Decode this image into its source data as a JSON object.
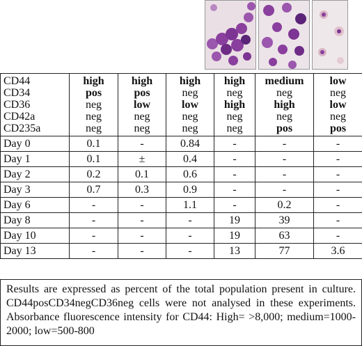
{
  "images": [
    {
      "name": "micrograph-1",
      "depicts": "cluster of purple-stained cells"
    },
    {
      "name": "micrograph-2",
      "depicts": "scattered purple-stained cells"
    },
    {
      "name": "micrograph-3",
      "depicts": "few pale cells"
    }
  ],
  "markers": [
    "CD44",
    "CD34",
    "CD36",
    "CD42a",
    "CD235a"
  ],
  "columns": [
    {
      "values": [
        {
          "t": "high",
          "b": true
        },
        {
          "t": "pos",
          "b": true
        },
        {
          "t": "neg",
          "b": false
        },
        {
          "t": "neg",
          "b": false
        },
        {
          "t": "neg",
          "b": false
        }
      ]
    },
    {
      "values": [
        {
          "t": "high",
          "b": true
        },
        {
          "t": "pos",
          "b": true
        },
        {
          "t": "low",
          "b": true
        },
        {
          "t": "neg",
          "b": false
        },
        {
          "t": "neg",
          "b": false
        }
      ]
    },
    {
      "values": [
        {
          "t": "high",
          "b": true
        },
        {
          "t": "neg",
          "b": false
        },
        {
          "t": "low",
          "b": true
        },
        {
          "t": "neg",
          "b": false
        },
        {
          "t": "neg",
          "b": false
        }
      ]
    },
    {
      "values": [
        {
          "t": "high",
          "b": true
        },
        {
          "t": "neg",
          "b": false
        },
        {
          "t": "high",
          "b": true
        },
        {
          "t": "neg",
          "b": false
        },
        {
          "t": "neg",
          "b": false
        }
      ]
    },
    {
      "values": [
        {
          "t": "medium",
          "b": true
        },
        {
          "t": "neg",
          "b": false
        },
        {
          "t": "high",
          "b": true
        },
        {
          "t": "neg",
          "b": false
        },
        {
          "t": "pos",
          "b": true
        }
      ]
    },
    {
      "values": [
        {
          "t": "low",
          "b": true
        },
        {
          "t": "neg",
          "b": false
        },
        {
          "t": "low",
          "b": true
        },
        {
          "t": "neg",
          "b": false
        },
        {
          "t": "pos",
          "b": true
        }
      ]
    }
  ],
  "rows": [
    {
      "day": "Day 0",
      "values": [
        "0.1",
        "-",
        "0.84",
        "-",
        "-",
        "-"
      ]
    },
    {
      "day": "Day 1",
      "values": [
        "0.1",
        "±",
        "0.4",
        "-",
        "-",
        "-"
      ]
    },
    {
      "day": "Day 2",
      "values": [
        "0.2",
        "0.1",
        "0.6",
        "-",
        "-",
        "-"
      ]
    },
    {
      "day": "Day 3",
      "values": [
        "0.7",
        "0.3",
        "0.9",
        "-",
        "-",
        "-"
      ]
    },
    {
      "day": "Day 6",
      "values": [
        "-",
        "-",
        "1.1",
        "-",
        "0.2",
        "-"
      ]
    },
    {
      "day": "Day 8",
      "values": [
        "-",
        "-",
        "-",
        "19",
        "39",
        "-"
      ]
    },
    {
      "day": "Day 10",
      "values": [
        "-",
        "-",
        "-",
        "19",
        "63",
        "-"
      ]
    },
    {
      "day": "Day 13",
      "values": [
        "-",
        "-",
        "-",
        "13",
        "77",
        "3.6"
      ]
    }
  ],
  "footnote": "Results are expressed as percent of the total population present in culture. CD44posCD34negCD36neg cells were not analysed in these experiments. Absorbance fluorescence intensity for CD44: High= >8,000; medium=1000-2000; low=500-800",
  "colors": {
    "stain": "#8a3f9e",
    "stain_dark": "#5b2478",
    "slide_bg": "#ede3e6"
  }
}
